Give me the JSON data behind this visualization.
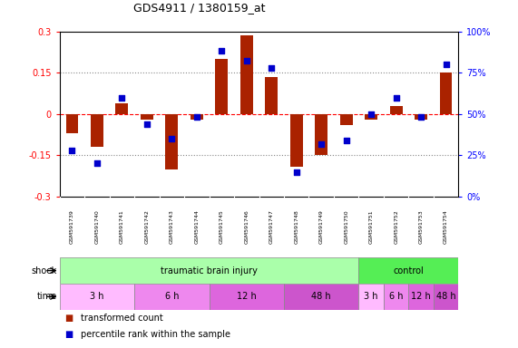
{
  "title": "GDS4911 / 1380159_at",
  "samples": [
    "GSM591739",
    "GSM591740",
    "GSM591741",
    "GSM591742",
    "GSM591743",
    "GSM591744",
    "GSM591745",
    "GSM591746",
    "GSM591747",
    "GSM591748",
    "GSM591749",
    "GSM591750",
    "GSM591751",
    "GSM591752",
    "GSM591753",
    "GSM591754"
  ],
  "red_values": [
    -0.07,
    -0.12,
    0.04,
    -0.02,
    -0.2,
    -0.02,
    0.2,
    0.285,
    0.135,
    -0.19,
    -0.15,
    -0.04,
    -0.02,
    0.03,
    -0.02,
    0.15
  ],
  "blue_values_pct": [
    28,
    20,
    60,
    44,
    35,
    48,
    88,
    82,
    78,
    15,
    32,
    34,
    50,
    60,
    48,
    80
  ],
  "ylim_left": [
    -0.3,
    0.3
  ],
  "ylim_right": [
    0,
    100
  ],
  "yticks_left": [
    -0.3,
    -0.15,
    0.0,
    0.15,
    0.3
  ],
  "yticks_right": [
    0,
    25,
    50,
    75,
    100
  ],
  "ytick_labels_left": [
    "-0.3",
    "-0.15",
    "0",
    "0.15",
    "0.3"
  ],
  "ytick_labels_right": [
    "0%",
    "25%",
    "50%",
    "75%",
    "100%"
  ],
  "shock_groups": [
    {
      "label": "traumatic brain injury",
      "start": 0,
      "end": 11,
      "color": "#aaffaa"
    },
    {
      "label": "control",
      "start": 12,
      "end": 15,
      "color": "#55ee55"
    }
  ],
  "time_groups": [
    {
      "label": "3 h",
      "start": 0,
      "end": 2,
      "color": "#ffbbff"
    },
    {
      "label": "6 h",
      "start": 3,
      "end": 5,
      "color": "#ee88ee"
    },
    {
      "label": "12 h",
      "start": 6,
      "end": 8,
      "color": "#dd66dd"
    },
    {
      "label": "48 h",
      "start": 9,
      "end": 11,
      "color": "#cc55cc"
    },
    {
      "label": "3 h",
      "start": 12,
      "end": 12,
      "color": "#ffbbff"
    },
    {
      "label": "6 h",
      "start": 13,
      "end": 13,
      "color": "#ee88ee"
    },
    {
      "label": "12 h",
      "start": 14,
      "end": 14,
      "color": "#dd66dd"
    },
    {
      "label": "48 h",
      "start": 15,
      "end": 15,
      "color": "#cc55cc"
    }
  ],
  "red_color": "#aa2200",
  "blue_color": "#0000cc",
  "bar_width": 0.5,
  "legend_items": [
    {
      "label": "transformed count",
      "color": "#aa2200"
    },
    {
      "label": "percentile rank within the sample",
      "color": "#0000cc"
    }
  ],
  "hline_color": "#888888",
  "zeroline_color": "red",
  "background_color": "#ffffff",
  "label_area_color": "#bbbbbb",
  "shock_row_label": "shock",
  "time_row_label": "time",
  "n_samples": 16
}
